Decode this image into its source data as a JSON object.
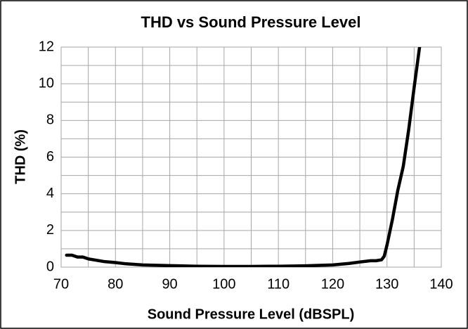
{
  "chart_data": {
    "type": "line",
    "title": "THD vs Sound Pressure Level",
    "x_label": "Sound Pressure Level (dBSPL)",
    "y_label": "THD (%)",
    "x": [
      71,
      72,
      73,
      74,
      75,
      76,
      78,
      80,
      82,
      85,
      90,
      95,
      100,
      105,
      110,
      115,
      120,
      123,
      125,
      127,
      128,
      129,
      129.5,
      130,
      131,
      132,
      133,
      134,
      135,
      136
    ],
    "series": [
      {
        "name": "THD",
        "color": "#000000",
        "values": [
          0.65,
          0.65,
          0.55,
          0.55,
          0.45,
          0.4,
          0.3,
          0.25,
          0.18,
          0.12,
          0.08,
          0.05,
          0.04,
          0.04,
          0.05,
          0.07,
          0.12,
          0.2,
          0.28,
          0.35,
          0.35,
          0.4,
          0.6,
          1.2,
          2.6,
          4.2,
          5.5,
          7.5,
          9.8,
          12
        ]
      }
    ],
    "xlim": [
      70,
      140
    ],
    "ylim": [
      0,
      12
    ],
    "xticks": [
      70,
      80,
      90,
      100,
      110,
      120,
      130,
      140
    ],
    "yticks": [
      0,
      2,
      4,
      6,
      8,
      10,
      12
    ],
    "x_minor_ticks": [
      75,
      85,
      95,
      105,
      115,
      125,
      135
    ],
    "y_minor_ticks": [
      1,
      3,
      5,
      7,
      9,
      11
    ],
    "grid": true
  }
}
